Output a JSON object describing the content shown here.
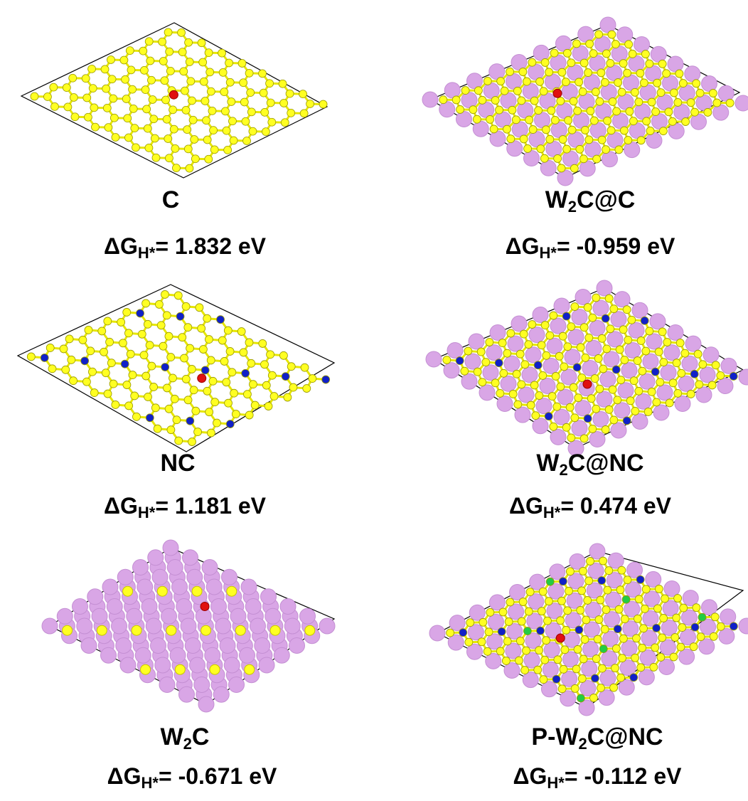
{
  "panels": [
    {
      "name": [
        "C"
      ],
      "energy": {
        "symbol": "ΔG",
        "subscript": "H*",
        "text": "= 1.832 eV"
      }
    },
    {
      "name": [
        "W",
        "2",
        "C@C"
      ],
      "energy": {
        "symbol": "ΔG",
        "subscript": "H*",
        "text": "= -0.959 eV"
      }
    },
    {
      "name": [
        "NC"
      ],
      "energy": {
        "symbol": "ΔG",
        "subscript": "H*",
        "text": "= 1.181 eV"
      }
    },
    {
      "name": [
        "W",
        "2",
        "C@NC"
      ],
      "energy": {
        "symbol": "ΔG",
        "subscript": "H*",
        "text": "= 0.474 eV"
      }
    },
    {
      "name": [
        "W",
        "2",
        "C"
      ],
      "energy": {
        "symbol": "ΔG",
        "subscript": "H*",
        "text": "= -0.671 eV"
      }
    },
    {
      "name": [
        "P-W",
        "2",
        "C@NC"
      ],
      "energy": {
        "symbol": "ΔG",
        "subscript": "H*",
        "text": "= -0.112 eV"
      }
    }
  ]
}
